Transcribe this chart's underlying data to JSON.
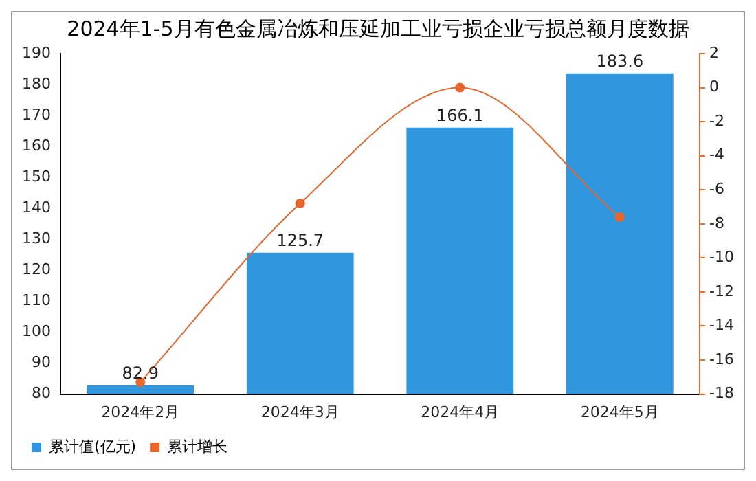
{
  "chart_data": {
    "type": "bar",
    "title": "2024年1-5月有色金属冶炼和压延加工业亏损企业亏损总额月度数据",
    "categories": [
      "2024年2月",
      "2024年3月",
      "2024年4月",
      "2024年5月"
    ],
    "series": [
      {
        "name": "累计值(亿元)",
        "color": "#3096de",
        "values": [
          82.9,
          125.7,
          166.1,
          183.6
        ],
        "value_labels": [
          "82.9",
          "125.7",
          "166.1",
          "183.6"
        ]
      },
      {
        "name": "累计增长",
        "type": "line",
        "axis": "y2",
        "color": "#e8672e",
        "values": [
          -17.3,
          -6.8,
          0.0,
          -7.6
        ],
        "marker": "circle"
      }
    ],
    "ylim": [
      80,
      190
    ],
    "yticks": [
      80,
      90,
      100,
      110,
      120,
      130,
      140,
      150,
      160,
      170,
      180,
      190
    ],
    "y2lim": [
      -18,
      2
    ],
    "y2ticks": [
      -18,
      -16,
      -14,
      -12,
      -10,
      -8,
      -6,
      -4,
      -2,
      0,
      2
    ],
    "grid": false,
    "legend": "bottom left"
  }
}
